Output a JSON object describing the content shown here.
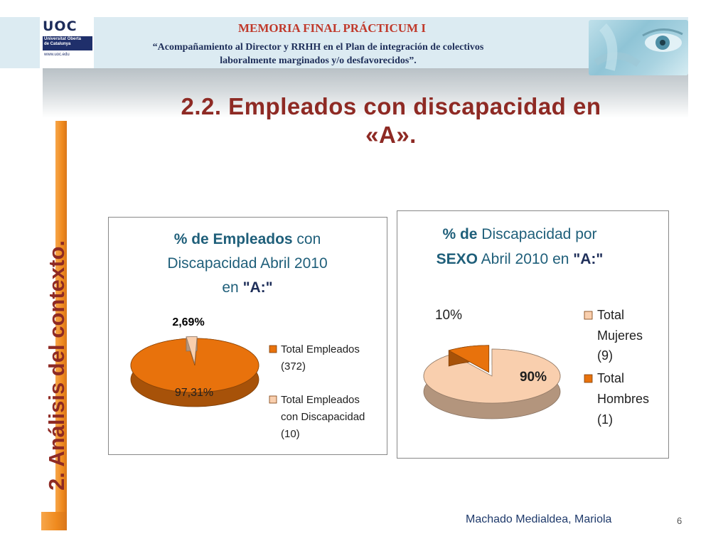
{
  "header": {
    "logo": {
      "brand": "UOC",
      "name_line1": "Universitat Oberta",
      "name_line2": "de Catalunya",
      "web": "www.uoc.edu"
    },
    "memoria": "MEMORIA FINAL PRÁCTICUM I",
    "subtitle_line1": "“Acompañamiento al Director y RRHH en el Plan de integración de colectivos",
    "subtitle_line2": "laboralmente marginados y/o desfavorecidos”."
  },
  "slide": {
    "title_line1": "2.2. Empleados con discapacidad en",
    "title_line2": "«A».",
    "section": "2. Análisis del contexto."
  },
  "colors": {
    "orange": "#e8720c",
    "peach": "#f9cfae",
    "dark_red": "#8e2a24",
    "title_blue": "#1f5f7a",
    "navy": "#1f2f5a"
  },
  "chart_data": [
    {
      "type": "pie",
      "title_parts": [
        "%  de Empleados",
        " con",
        "Discapacidad Abril 2010",
        "en ",
        "\"A:\""
      ],
      "slices": [
        {
          "label": "Total Empleados (372)",
          "legend_lines": [
            "Total Empleados",
            "(372)"
          ],
          "value": 97.31,
          "data_label": "97,31%",
          "color": "#e8720c"
        },
        {
          "label": "Total Empleados con Discapacidad (10)",
          "legend_lines": [
            "Total Empleados",
            "con Discapacidad",
            "(10)"
          ],
          "value": 2.69,
          "data_label": "2,69%",
          "color": "#f9cfae"
        }
      ]
    },
    {
      "type": "pie",
      "title_parts": [
        "% de",
        " Discapacidad por",
        "SEXO",
        " Abril 2010 en ",
        "\"A:\""
      ],
      "slices": [
        {
          "label": "Total Mujeres (9)",
          "legend_lines": [
            "Total",
            "Mujeres",
            "(9)"
          ],
          "value": 90,
          "data_label": "90%",
          "color": "#f9cfae"
        },
        {
          "label": "Total Hombres (1)",
          "legend_lines": [
            "Total",
            "Hombres",
            "(1)"
          ],
          "value": 10,
          "data_label": "10%",
          "color": "#e8720c"
        }
      ]
    }
  ],
  "footer": {
    "author": "Machado Medialdea, Mariola",
    "page": "6"
  }
}
